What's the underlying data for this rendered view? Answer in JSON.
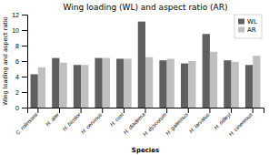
{
  "chart_data": {
    "type": "bar",
    "title": "Wing loading (WL) and aspect ratio (AR)",
    "x_label": "Species",
    "y_label": "Wing loading and aspect ratio",
    "categories": [
      "C. rolinsonii",
      "H. ater",
      "H. bicolor",
      "H. cervinus",
      "H. coxi",
      "H. diadema",
      "H. dyscorum",
      "H. galerinus",
      "H. larvatus",
      "H. ridleyi",
      "H. cinereous"
    ],
    "series": [
      {
        "name": "WL",
        "color": "#606060",
        "values": [
          4.3,
          6.4,
          5.5,
          6.4,
          6.3,
          11.1,
          6.1,
          5.7,
          9.5,
          6.1,
          5.5
        ]
      },
      {
        "name": "AR",
        "color": "#c0c0c0",
        "values": [
          5.2,
          5.8,
          5.5,
          6.4,
          6.3,
          6.5,
          6.3,
          6.0,
          7.2,
          5.9,
          6.7
        ]
      }
    ],
    "ylim": [
      0,
      12
    ],
    "yticks": [
      0,
      2,
      4,
      6,
      8,
      10,
      12
    ],
    "grid": false,
    "legend": "upper right"
  }
}
